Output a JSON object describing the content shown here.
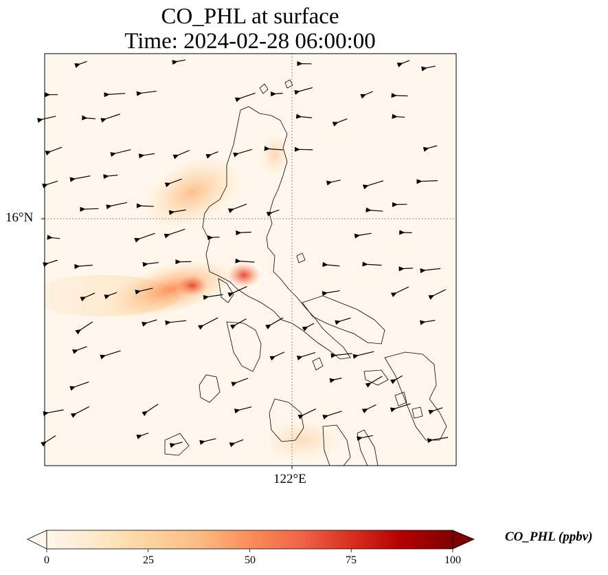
{
  "title": {
    "line1": "CO_PHL at surface",
    "line2": "Time: 2024-02-28 06:00:00"
  },
  "axes": {
    "lat_tick": "16°N",
    "lon_tick": "122°E",
    "gridlines": "dotted"
  },
  "colorbar": {
    "label": "CO_PHL (ppbv)",
    "ticks": [
      "0",
      "25",
      "50",
      "75",
      "100"
    ],
    "range": [
      0,
      100
    ],
    "extend": "both",
    "colormap": "OrRd",
    "colors": [
      "#fff7ec",
      "#fee8c8",
      "#fdd49e",
      "#fdbb84",
      "#fc8d59",
      "#ef6548",
      "#d7301f",
      "#b30000",
      "#7f0000"
    ]
  },
  "map": {
    "background": "#fff7ec",
    "coastline_color": "#000000",
    "wind_arrow_color": "#000000"
  }
}
